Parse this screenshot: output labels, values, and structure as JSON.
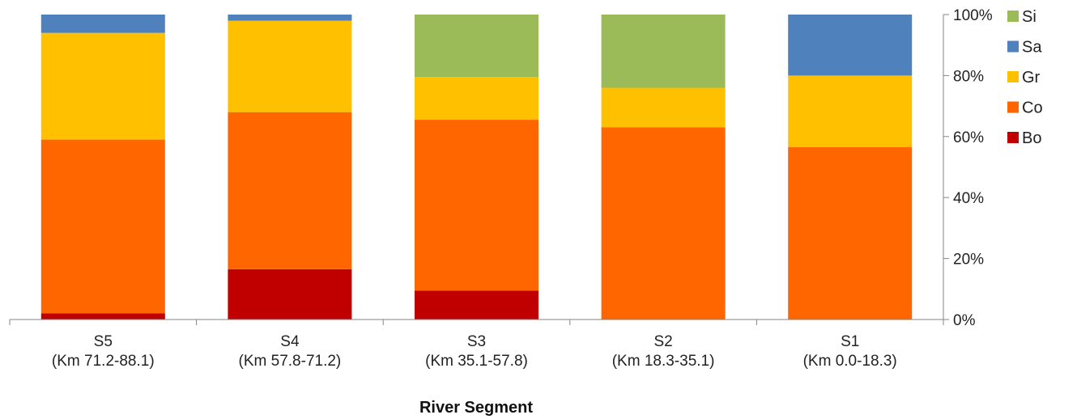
{
  "chart_data": {
    "type": "bar",
    "stacked": true,
    "percent": true,
    "title": "",
    "xlabel": "River Segment",
    "ylabel": "",
    "ylim": [
      0,
      100
    ],
    "y_tick_labels": [
      "0%",
      "20%",
      "40%",
      "60%",
      "80%",
      "100%"
    ],
    "y_axis_position": "right",
    "grid": false,
    "legend_position": "right",
    "categories": [
      [
        "S5",
        "(Km 71.2-88.1)"
      ],
      [
        "S4",
        "(Km 57.8-71.2)"
      ],
      [
        "S3",
        "(Km 35.1-57.8)"
      ],
      [
        "S2",
        "(Km 18.3-35.1)"
      ],
      [
        "S1",
        "(Km 0.0-18.3)"
      ]
    ],
    "series": [
      {
        "name": "Bo",
        "color": "#c00000",
        "values": [
          2,
          16.5,
          9.5,
          0,
          0
        ]
      },
      {
        "name": "Co",
        "color": "#ff6600",
        "values": [
          57,
          51.5,
          56,
          63,
          56.5
        ]
      },
      {
        "name": "Gr",
        "color": "#ffc000",
        "values": [
          35,
          30,
          14,
          13,
          23.5
        ]
      },
      {
        "name": "Sa",
        "color": "#4f81bd",
        "values": [
          6,
          2,
          0,
          0,
          20
        ]
      },
      {
        "name": "Si",
        "color": "#9bbb59",
        "values": [
          0,
          0,
          20.5,
          24,
          0
        ]
      }
    ],
    "legend_order": [
      "Si",
      "Sa",
      "Gr",
      "Co",
      "Bo"
    ]
  }
}
